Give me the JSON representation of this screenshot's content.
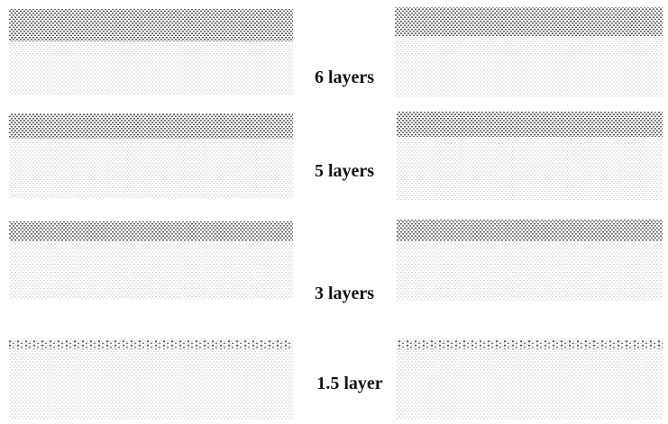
{
  "figure": {
    "panels": [
      {
        "label": "6 layers"
      },
      {
        "label": "5 layers"
      },
      {
        "label": "3 layers"
      },
      {
        "label": "1.5 layer"
      }
    ]
  }
}
